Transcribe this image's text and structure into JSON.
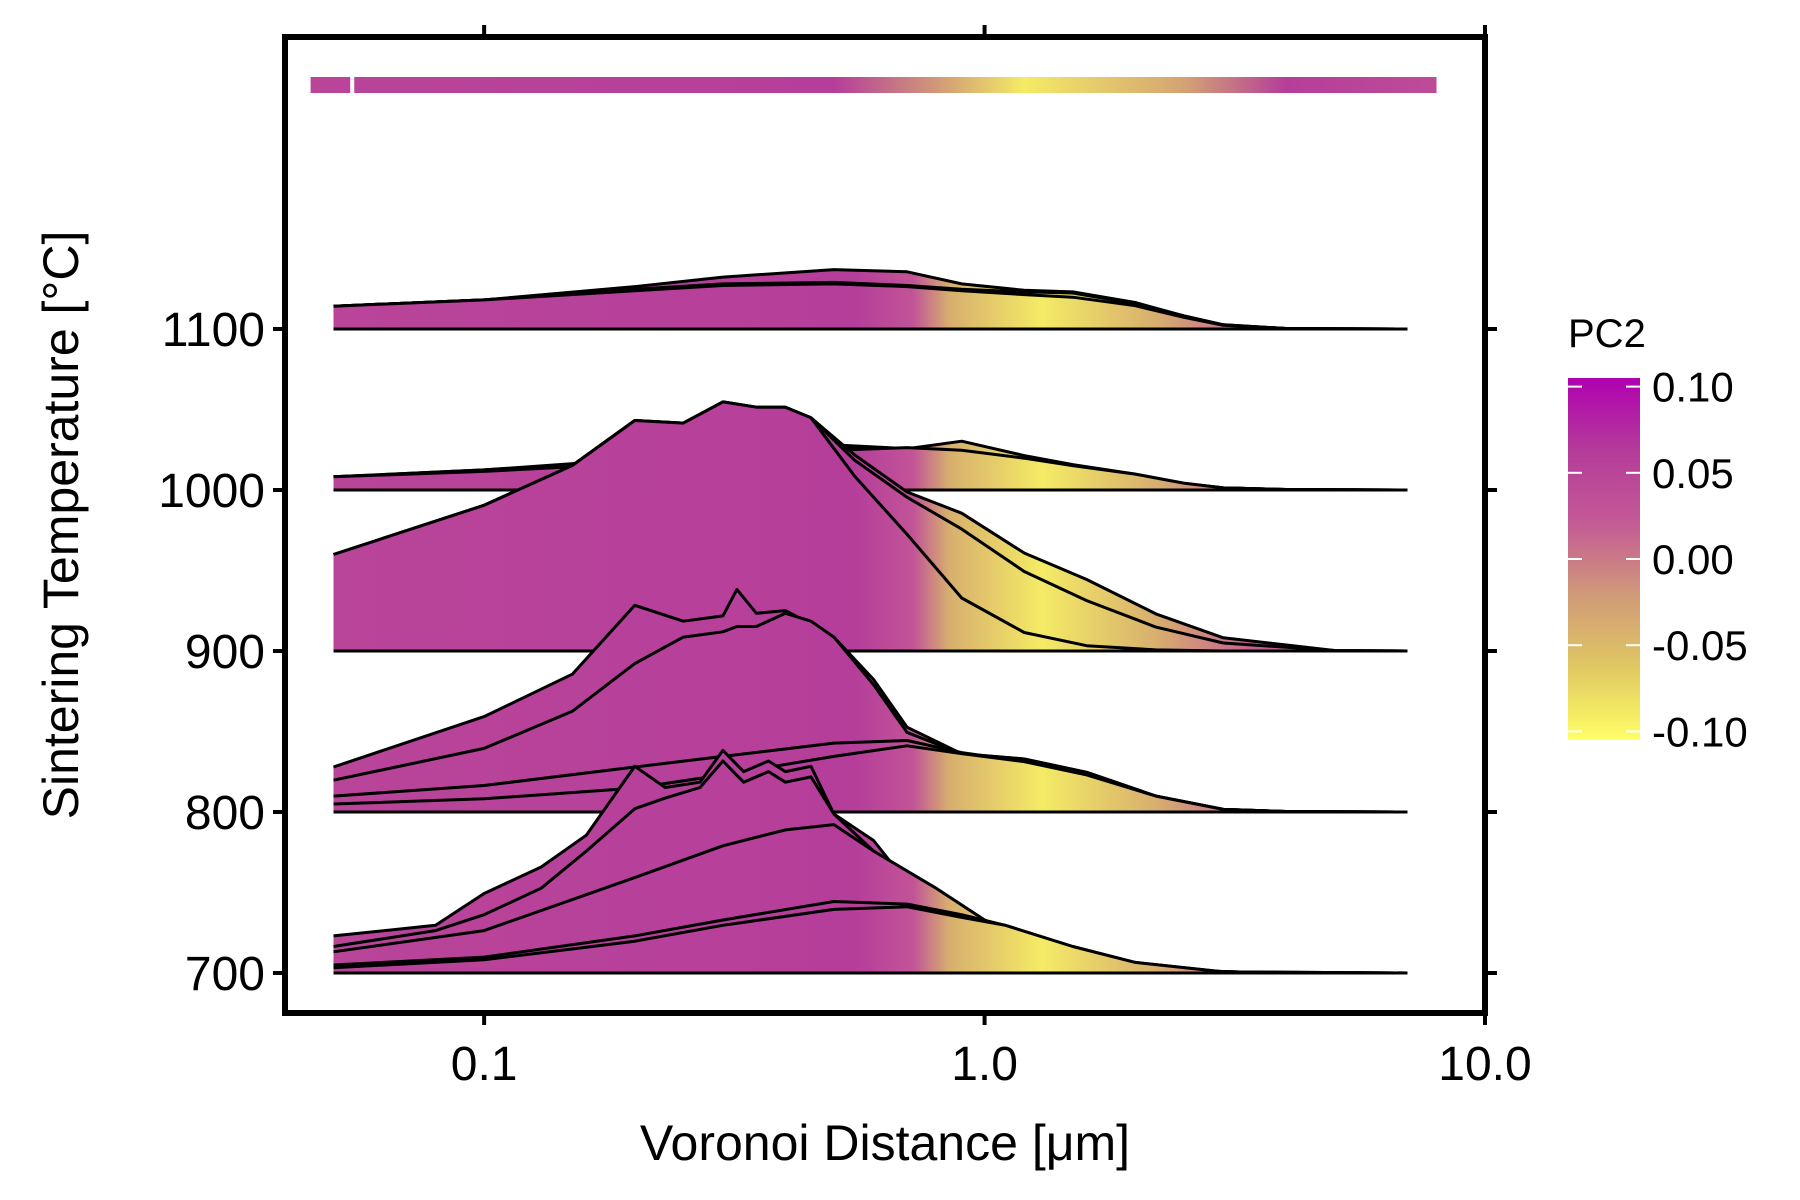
{
  "chart_data": {
    "type": "area",
    "subtype": "ridgeline",
    "title": "",
    "xlabel": "Voronoi Distance [μm]",
    "ylabel": "Sintering Temperature [°C]",
    "x_scale": "log",
    "xlim": [
      0.04,
      10.0
    ],
    "x_ticks": [
      0.1,
      1.0,
      10.0
    ],
    "x_tick_labels": [
      "0.1",
      "1.0",
      "10.0"
    ],
    "y_ticks": [
      700,
      800,
      900,
      1000,
      1100
    ],
    "y_tick_labels": [
      "700",
      "800",
      "900",
      "1000",
      "1100"
    ],
    "ylim": [
      672,
      1290
    ],
    "grid": false,
    "fill_gradient_stops": [
      {
        "x": 0.05,
        "pc2": 0.05
      },
      {
        "x": 0.55,
        "pc2": 0.06
      },
      {
        "x": 0.72,
        "pc2": 0.03
      },
      {
        "x": 0.85,
        "pc2": -0.04
      },
      {
        "x": 1.3,
        "pc2": -0.09
      },
      {
        "x": 2.2,
        "pc2": -0.04
      },
      {
        "x": 3.5,
        "pc2": 0.02
      },
      {
        "x": 7.0,
        "pc2": 0.04
      }
    ],
    "top_strip": [
      {
        "x": 0.045,
        "pc2": 0.05
      },
      {
        "x": 0.5,
        "pc2": 0.06
      },
      {
        "x": 0.8,
        "pc2": -0.02
      },
      {
        "x": 1.2,
        "pc2": -0.09
      },
      {
        "x": 2.5,
        "pc2": -0.03
      },
      {
        "x": 4.0,
        "pc2": 0.06
      },
      {
        "x": 8.0,
        "pc2": 0.04
      }
    ],
    "groups": [
      {
        "temperature": 1100,
        "curves": [
          {
            "x": [
              0.05,
              0.1,
              0.2,
              0.3,
              0.5,
              0.7,
              0.9,
              1.2,
              1.5,
              2.0,
              2.5,
              3.0,
              4.0,
              7.0
            ],
            "y": [
              0.43,
              0.55,
              0.8,
              0.98,
              1.12,
              1.08,
              0.85,
              0.73,
              0.7,
              0.5,
              0.25,
              0.08,
              0.01,
              0.0
            ]
          },
          {
            "x": [
              0.05,
              0.1,
              0.2,
              0.3,
              0.5,
              0.7,
              0.9,
              1.2,
              1.5,
              2.0,
              2.5,
              3.0,
              4.0,
              7.0
            ],
            "y": [
              0.43,
              0.55,
              0.75,
              0.85,
              0.88,
              0.82,
              0.75,
              0.7,
              0.68,
              0.48,
              0.25,
              0.08,
              0.01,
              0.0
            ]
          },
          {
            "x": [
              0.05,
              0.1,
              0.2,
              0.3,
              0.5,
              0.7,
              0.9,
              1.2,
              1.5,
              2.0,
              2.5,
              3.0,
              4.0,
              7.0
            ],
            "y": [
              0.43,
              0.55,
              0.72,
              0.8,
              0.75,
              0.68,
              0.6,
              0.55,
              0.5,
              0.38,
              0.2,
              0.07,
              0.01,
              0.0
            ]
          },
          {
            "x": [
              0.05,
              0.1,
              0.2,
              0.3,
              0.5,
              0.7,
              0.9,
              1.2,
              1.5,
              2.0,
              2.5,
              3.0,
              4.0,
              7.0
            ],
            "y": [
              0.43,
              0.55,
              0.72,
              0.82,
              0.85,
              0.8,
              0.72,
              0.65,
              0.6,
              0.44,
              0.22,
              0.07,
              0.01,
              0.0
            ]
          }
        ]
      },
      {
        "temperature": 1000,
        "curves": [
          {
            "x": [
              0.05,
              0.1,
              0.2,
              0.3,
              0.5,
              0.7,
              0.9,
              1.2,
              1.5,
              2.0,
              2.5,
              3.0,
              4.0,
              7.0
            ],
            "y": [
              0.25,
              0.38,
              0.58,
              0.7,
              0.85,
              0.78,
              0.92,
              0.65,
              0.48,
              0.3,
              0.12,
              0.04,
              0.01,
              0.0
            ]
          },
          {
            "x": [
              0.05,
              0.1,
              0.2,
              0.3,
              0.5,
              0.7,
              0.9,
              1.2,
              1.5,
              2.0,
              2.5,
              3.0,
              4.0,
              7.0
            ],
            "y": [
              0.25,
              0.38,
              0.55,
              0.68,
              0.8,
              0.75,
              0.72,
              0.6,
              0.45,
              0.28,
              0.12,
              0.04,
              0.01,
              0.0
            ]
          },
          {
            "x": [
              0.05,
              0.1,
              0.2,
              0.3,
              0.5,
              0.7,
              0.9,
              1.2,
              1.5,
              2.0,
              2.5,
              3.0,
              4.0,
              7.0
            ],
            "y": [
              0.25,
              0.32,
              0.45,
              0.55,
              0.7,
              0.72,
              0.68,
              0.58,
              0.44,
              0.28,
              0.12,
              0.04,
              0.01,
              0.0
            ]
          },
          {
            "x": [
              0.05,
              0.1,
              0.2,
              0.3,
              0.5,
              0.7,
              0.9,
              1.2,
              1.5,
              2.0,
              2.5,
              3.0,
              4.0,
              7.0
            ],
            "y": [
              0.25,
              0.35,
              0.5,
              0.62,
              0.75,
              0.8,
              0.75,
              0.6,
              0.46,
              0.3,
              0.13,
              0.04,
              0.01,
              0.0
            ]
          }
        ]
      },
      {
        "temperature": 900,
        "curves": [
          {
            "x": [
              0.05,
              0.1,
              0.15,
              0.2,
              0.25,
              0.3,
              0.35,
              0.4,
              0.45,
              0.55,
              0.7,
              0.9,
              1.2,
              1.6,
              2.2,
              3.0,
              5.0,
              7.0
            ],
            "y": [
              1.82,
              2.75,
              3.5,
              4.35,
              4.3,
              4.7,
              4.6,
              4.6,
              4.4,
              3.7,
              3.0,
              2.6,
              1.85,
              1.35,
              0.7,
              0.25,
              0.01,
              0.0
            ]
          },
          {
            "x": [
              0.05,
              0.1,
              0.15,
              0.2,
              0.25,
              0.3,
              0.35,
              0.4,
              0.45,
              0.55,
              0.7,
              0.9,
              1.2,
              1.6,
              2.2,
              3.0,
              5.0,
              7.0
            ],
            "y": [
              1.82,
              2.75,
              3.5,
              4.35,
              4.3,
              4.7,
              4.6,
              4.6,
              4.4,
              3.6,
              2.9,
              2.3,
              1.5,
              0.95,
              0.45,
              0.15,
              0.01,
              0.0
            ]
          },
          {
            "x": [
              0.05,
              0.1,
              0.15,
              0.2,
              0.25,
              0.3,
              0.35,
              0.4,
              0.45,
              0.55,
              0.7,
              0.9,
              1.2,
              1.6,
              2.2,
              3.0,
              5.0,
              7.0
            ],
            "y": [
              1.82,
              2.75,
              3.5,
              4.35,
              4.3,
              4.7,
              4.6,
              4.6,
              4.4,
              3.3,
              2.2,
              1.0,
              0.35,
              0.1,
              0.02,
              0.0,
              0.0,
              0.0
            ]
          }
        ]
      },
      {
        "temperature": 800,
        "curves": [
          {
            "x": [
              0.05,
              0.1,
              0.15,
              0.2,
              0.25,
              0.3,
              0.32,
              0.35,
              0.4,
              0.45,
              0.5,
              0.6,
              0.7,
              0.9,
              1.2,
              1.6,
              2.2,
              3.0,
              4.0,
              7.0
            ],
            "y": [
              0.85,
              1.8,
              2.6,
              3.9,
              3.6,
              3.7,
              4.2,
              3.75,
              3.8,
              3.55,
              3.3,
              2.5,
              1.6,
              1.1,
              1.0,
              0.75,
              0.3,
              0.05,
              0.01,
              0.0
            ]
          },
          {
            "x": [
              0.05,
              0.1,
              0.15,
              0.2,
              0.25,
              0.3,
              0.32,
              0.35,
              0.4,
              0.45,
              0.5,
              0.6,
              0.7,
              0.9,
              1.2,
              1.6,
              2.2,
              3.0,
              4.0,
              7.0
            ],
            "y": [
              0.6,
              1.2,
              1.9,
              2.8,
              3.3,
              3.4,
              3.5,
              3.5,
              3.75,
              3.6,
              3.3,
              2.4,
              1.5,
              1.1,
              1.0,
              0.75,
              0.3,
              0.05,
              0.01,
              0.0
            ]
          },
          {
            "x": [
              0.05,
              0.1,
              0.2,
              0.3,
              0.5,
              0.7,
              0.9,
              1.2,
              1.6,
              2.2,
              3.0,
              4.0,
              7.0
            ],
            "y": [
              0.3,
              0.5,
              0.85,
              1.05,
              1.3,
              1.35,
              1.12,
              0.95,
              0.7,
              0.3,
              0.05,
              0.01,
              0.0
            ]
          },
          {
            "x": [
              0.05,
              0.1,
              0.2,
              0.3,
              0.5,
              0.7,
              0.9,
              1.2,
              1.6,
              2.2,
              3.0,
              4.0,
              7.0
            ],
            "y": [
              0.15,
              0.25,
              0.45,
              0.7,
              1.05,
              1.25,
              1.1,
              0.95,
              0.7,
              0.3,
              0.05,
              0.01,
              0.0
            ]
          }
        ]
      },
      {
        "temperature": 700,
        "curves": [
          {
            "x": [
              0.05,
              0.08,
              0.1,
              0.13,
              0.16,
              0.2,
              0.23,
              0.27,
              0.3,
              0.33,
              0.37,
              0.4,
              0.45,
              0.5,
              0.6,
              0.7,
              0.8,
              1.0,
              1.3,
              1.8,
              2.5,
              3.5,
              7.0
            ],
            "y": [
              0.7,
              0.9,
              1.5,
              2.0,
              2.6,
              3.9,
              3.5,
              3.6,
              4.2,
              3.8,
              4.0,
              3.8,
              3.9,
              3.0,
              2.5,
              1.7,
              1.1,
              0.9,
              0.6,
              0.25,
              0.05,
              0.01,
              0.0
            ]
          },
          {
            "x": [
              0.05,
              0.08,
              0.1,
              0.13,
              0.16,
              0.2,
              0.23,
              0.27,
              0.3,
              0.33,
              0.37,
              0.4,
              0.45,
              0.5,
              0.6,
              0.7,
              0.8,
              1.0,
              1.3,
              1.8,
              2.5,
              3.5,
              7.0
            ],
            "y": [
              0.5,
              0.8,
              1.1,
              1.6,
              2.3,
              3.1,
              3.3,
              3.5,
              4.0,
              3.6,
              3.8,
              3.6,
              3.7,
              3.0,
              2.3,
              1.6,
              1.1,
              0.9,
              0.6,
              0.25,
              0.05,
              0.01,
              0.0
            ]
          },
          {
            "x": [
              0.05,
              0.1,
              0.2,
              0.3,
              0.4,
              0.5,
              0.6,
              0.8,
              1.0,
              1.3,
              1.8,
              2.5,
              3.5,
              7.0
            ],
            "y": [
              0.4,
              0.8,
              1.8,
              2.4,
              2.7,
              2.8,
              2.3,
              1.6,
              1.0,
              0.6,
              0.25,
              0.05,
              0.01,
              0.0
            ]
          },
          {
            "x": [
              0.05,
              0.1,
              0.2,
              0.3,
              0.5,
              0.7,
              0.9,
              1.1,
              1.5,
              2.0,
              3.0,
              7.0
            ],
            "y": [
              0.15,
              0.3,
              0.7,
              1.0,
              1.35,
              1.3,
              1.1,
              0.9,
              0.5,
              0.2,
              0.02,
              0.0
            ]
          },
          {
            "x": [
              0.05,
              0.1,
              0.2,
              0.3,
              0.5,
              0.7,
              0.9,
              1.1,
              1.5,
              2.0,
              3.0,
              7.0
            ],
            "y": [
              0.1,
              0.25,
              0.6,
              0.9,
              1.2,
              1.25,
              1.05,
              0.9,
              0.5,
              0.2,
              0.02,
              0.0
            ]
          }
        ]
      }
    ],
    "legend": {
      "title": "PC2",
      "position": "right",
      "ticks": [
        0.1,
        0.05,
        0.0,
        -0.05,
        -0.1
      ],
      "tick_labels": [
        "0.10",
        "0.05",
        "0.00",
        "-0.05",
        "-0.10"
      ],
      "range": [
        -0.105,
        0.105
      ],
      "colors": [
        "#ffff66",
        "#e0c862",
        "#d09a78",
        "#c45a96",
        "#b43c9a",
        "#b000b0"
      ]
    }
  }
}
